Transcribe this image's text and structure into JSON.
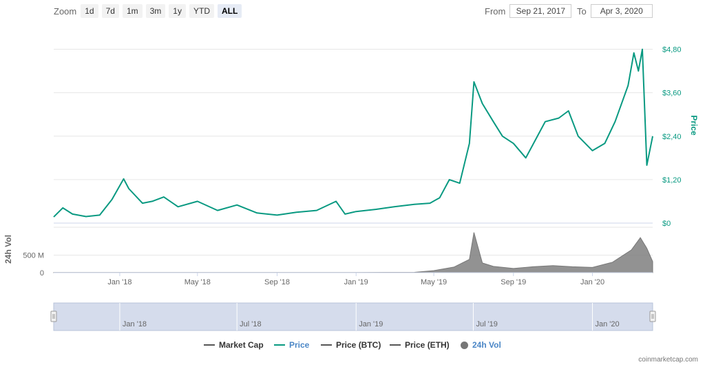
{
  "zoom": {
    "label": "Zoom",
    "buttons": [
      "1d",
      "7d",
      "1m",
      "3m",
      "1y",
      "YTD",
      "ALL"
    ],
    "active": "ALL"
  },
  "range": {
    "from_label": "From",
    "from_value": "Sep 21, 2017",
    "to_label": "To",
    "to_value": "Apr 3, 2020"
  },
  "credit": "coinmarketcap.com",
  "chart_data": {
    "type": "line",
    "x_range": [
      "2017-09-21",
      "2020-04-03"
    ],
    "price": {
      "name": "Price",
      "color": "#089981",
      "axis_label": "Price",
      "ylim": [
        0,
        5.4
      ],
      "ticks": [
        0,
        1.2,
        2.4,
        3.6,
        4.8
      ],
      "tick_labels": [
        "$0",
        "$1,20",
        "$2,40",
        "$3,60",
        "$4,80"
      ],
      "points": [
        [
          "2017-09-21",
          0.17
        ],
        [
          "2017-10-05",
          0.42
        ],
        [
          "2017-10-20",
          0.25
        ],
        [
          "2017-11-10",
          0.18
        ],
        [
          "2017-12-01",
          0.22
        ],
        [
          "2017-12-20",
          0.65
        ],
        [
          "2018-01-07",
          1.22
        ],
        [
          "2018-01-15",
          0.95
        ],
        [
          "2018-02-05",
          0.55
        ],
        [
          "2018-02-20",
          0.6
        ],
        [
          "2018-03-10",
          0.72
        ],
        [
          "2018-04-01",
          0.45
        ],
        [
          "2018-05-01",
          0.6
        ],
        [
          "2018-06-01",
          0.35
        ],
        [
          "2018-07-01",
          0.5
        ],
        [
          "2018-08-01",
          0.28
        ],
        [
          "2018-09-01",
          0.22
        ],
        [
          "2018-10-01",
          0.3
        ],
        [
          "2018-11-01",
          0.35
        ],
        [
          "2018-12-01",
          0.6
        ],
        [
          "2018-12-15",
          0.25
        ],
        [
          "2019-01-01",
          0.32
        ],
        [
          "2019-02-01",
          0.38
        ],
        [
          "2019-03-01",
          0.45
        ],
        [
          "2019-04-01",
          0.52
        ],
        [
          "2019-04-25",
          0.55
        ],
        [
          "2019-05-10",
          0.7
        ],
        [
          "2019-05-25",
          1.2
        ],
        [
          "2019-06-10",
          1.1
        ],
        [
          "2019-06-25",
          2.2
        ],
        [
          "2019-07-02",
          3.9
        ],
        [
          "2019-07-15",
          3.3
        ],
        [
          "2019-08-01",
          2.8
        ],
        [
          "2019-08-15",
          2.4
        ],
        [
          "2019-09-01",
          2.2
        ],
        [
          "2019-09-20",
          1.8
        ],
        [
          "2019-10-05",
          2.3
        ],
        [
          "2019-10-20",
          2.8
        ],
        [
          "2019-11-10",
          2.9
        ],
        [
          "2019-11-25",
          3.1
        ],
        [
          "2019-12-10",
          2.4
        ],
        [
          "2020-01-01",
          2.0
        ],
        [
          "2020-01-20",
          2.2
        ],
        [
          "2020-02-05",
          2.8
        ],
        [
          "2020-02-25",
          3.8
        ],
        [
          "2020-03-05",
          4.7
        ],
        [
          "2020-03-12",
          4.2
        ],
        [
          "2020-03-18",
          4.8
        ],
        [
          "2020-03-25",
          1.6
        ],
        [
          "2020-04-03",
          2.4
        ]
      ]
    },
    "volume": {
      "name": "24h Vol",
      "color": "#777777",
      "axis_label": "24h Vol",
      "ylim": [
        0,
        1300
      ],
      "ticks": [
        0,
        500
      ],
      "tick_labels": [
        "0",
        "500 M"
      ],
      "points": [
        [
          "2017-09-21",
          3
        ],
        [
          "2018-04-01",
          4
        ],
        [
          "2018-10-01",
          5
        ],
        [
          "2019-01-01",
          6
        ],
        [
          "2019-04-01",
          10
        ],
        [
          "2019-05-01",
          60
        ],
        [
          "2019-06-01",
          160
        ],
        [
          "2019-06-25",
          380
        ],
        [
          "2019-07-02",
          1150
        ],
        [
          "2019-07-15",
          280
        ],
        [
          "2019-08-01",
          180
        ],
        [
          "2019-09-01",
          120
        ],
        [
          "2019-10-01",
          170
        ],
        [
          "2019-11-01",
          200
        ],
        [
          "2019-12-01",
          170
        ],
        [
          "2020-01-01",
          150
        ],
        [
          "2020-02-01",
          300
        ],
        [
          "2020-03-01",
          650
        ],
        [
          "2020-03-15",
          1000
        ],
        [
          "2020-03-25",
          700
        ],
        [
          "2020-04-03",
          320
        ]
      ]
    },
    "x_ticks": [
      "Jan '18",
      "May '18",
      "Sep '18",
      "Jan '19",
      "May '19",
      "Sep '19",
      "Jan '20"
    ],
    "x_tick_dates": [
      "2018-01-01",
      "2018-05-01",
      "2018-09-01",
      "2019-01-01",
      "2019-05-01",
      "2019-09-01",
      "2020-01-01"
    ],
    "navigator_ticks": [
      "Jan '18",
      "Jul '18",
      "Jan '19",
      "Jul '19",
      "Jan '20"
    ],
    "navigator_tick_dates": [
      "2018-01-01",
      "2018-07-01",
      "2019-01-01",
      "2019-07-01",
      "2020-01-01"
    ],
    "legend": [
      {
        "name": "Market Cap",
        "color": "#555555",
        "marker": "line"
      },
      {
        "name": "Price",
        "color": "#089981",
        "marker": "line"
      },
      {
        "name": "Price (BTC)",
        "color": "#555555",
        "marker": "line"
      },
      {
        "name": "Price (ETH)",
        "color": "#555555",
        "marker": "line"
      },
      {
        "name": "24h Vol",
        "color": "#777777",
        "marker": "dot"
      }
    ],
    "grid": true
  }
}
